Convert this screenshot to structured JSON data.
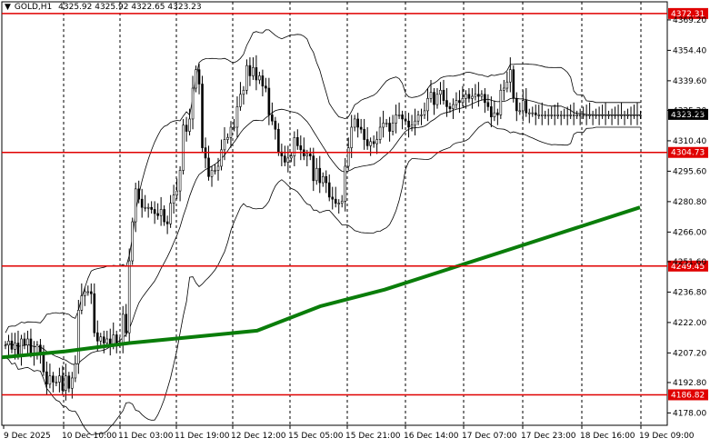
{
  "header": {
    "arrow": "▼",
    "symbol": "GOLD,H1",
    "ohlc": "4325.92 4325.92 4322.65 4323.23"
  },
  "chart_data": {
    "type": "candlestick",
    "symbol": "GOLD",
    "timeframe": "H1",
    "title": "",
    "xlabel": "",
    "ylabel": "",
    "ylim": [
      4172,
      4378
    ],
    "grid": {
      "vertical_dashed": true,
      "horizontal": false
    },
    "y_ticks": [
      4178.0,
      4192.8,
      4207.2,
      4222.0,
      4236.8,
      4251.6,
      4266.0,
      4280.8,
      4295.6,
      4310.4,
      4325.2,
      4339.6,
      4354.4,
      4369.2
    ],
    "y_tick_labels": [
      "4178.00",
      "4192.80",
      "4207.20",
      "4222.00",
      "4236.80",
      "4251.60",
      "4266.00",
      "4280.80",
      "4295.60",
      "4310.40",
      "4325.20",
      "4339.60",
      "4354.40",
      "4369.20"
    ],
    "x_tick_labels": [
      "9 Dec 2025",
      "10 Dec 10:00",
      "11 Dec 03:00",
      "11 Dec 19:00",
      "12 Dec 12:00",
      "15 Dec 05:00",
      "15 Dec 21:00",
      "16 Dec 14:00",
      "17 Dec 07:00",
      "17 Dec 23:00",
      "18 Dec 16:00",
      "19 Dec 09:00"
    ],
    "current_price": {
      "label": "4323.23",
      "value": 4323.23
    },
    "levels": [
      {
        "label": "4372.31",
        "value": 4372.31
      },
      {
        "label": "4304.73",
        "value": 4304.73
      },
      {
        "label": "4249.45",
        "value": 4249.45
      },
      {
        "label": "4186.82",
        "value": 4186.82
      }
    ],
    "colors": {
      "level_line": "#e00000",
      "level_label_bg": "#e00000",
      "moving_average": "#0a7d0a",
      "bands": "#000000",
      "candles": "#000000",
      "current_bg": "#000000"
    },
    "series": [
      {
        "type": "candles",
        "n": 203,
        "close": [
          4211,
          4213,
          4209,
          4212,
          4206,
          4214,
          4211,
          4214,
          4207,
          4206,
          4211,
          4207,
          4198,
          4192,
          4196,
          4193,
          4193,
          4196,
          4189,
          4196,
          4190,
          4195,
          4202,
          4228,
          4235,
          4237,
          4237,
          4236,
          4217,
          4213,
          4215,
          4212,
          4214,
          4211,
          4216,
          4212,
          4212,
          4226,
          4217,
          4252,
          4271,
          4287,
          4282,
          4278,
          4278,
          4278,
          4277,
          4275,
          4274,
          4277,
          4271,
          4270,
          4280,
          4284,
          4286,
          4296,
          4318,
          4315,
          4321,
          4336,
          4345,
          4338,
          4307,
          4302,
          4293,
          4296,
          4296,
          4298,
          4306,
          4311,
          4312,
          4317,
          4317,
          4327,
          4333,
          4335,
          4347,
          4342,
          4346,
          4340,
          4342,
          4337,
          4336,
          4323,
          4320,
          4316,
          4305,
          4303,
          4300,
          4302,
          4303,
          4312,
          4308,
          4306,
          4303,
          4304,
          4303,
          4291,
          4297,
          4290,
          4293,
          4290,
          4283,
          4282,
          4280,
          4280,
          4281,
          4298,
          4307,
          4317,
          4321,
          4317,
          4316,
          4311,
          4308,
          4310,
          4309,
          4311,
          4317,
          4319,
          4319,
          4315,
          4319,
          4323,
          4323,
          4321,
          4320,
          4317,
          4318,
          4320,
          4323,
          4323,
          4325,
          4331,
          4334,
          4328,
          4333,
          4335,
          4330,
          4327,
          4326,
          4328,
          4330,
          4329,
          4331,
          4333,
          4331,
          4332,
          4333,
          4332,
          4333,
          4329,
          4327,
          4322,
          4324,
          4323,
          4335,
          4336,
          4339,
          4345,
          4331,
          4325,
          4325,
          4330,
          4324,
          4324,
          4324,
          4323,
          4323,
          4323,
          4323,
          4323,
          4323,
          4323,
          4323,
          4323,
          4323,
          4323,
          4323,
          4323,
          4323,
          4323,
          4323,
          4323,
          4323,
          4323,
          4323,
          4323,
          4323,
          4323,
          4323,
          4323,
          4323,
          4323,
          4323,
          4323,
          4323,
          4323,
          4323,
          4323,
          4323
        ]
      },
      {
        "name": "",
        "type": "moving_average",
        "color": "#0a7d0a",
        "x_frac": [
          0.0,
          0.1,
          0.2,
          0.3,
          0.4,
          0.5,
          0.6,
          0.7,
          0.8,
          0.9,
          1.0
        ],
        "values": [
          4205,
          4208,
          4212,
          4215,
          4218,
          4230,
          4238,
          4248,
          4258,
          4268,
          4278
        ]
      }
    ]
  }
}
